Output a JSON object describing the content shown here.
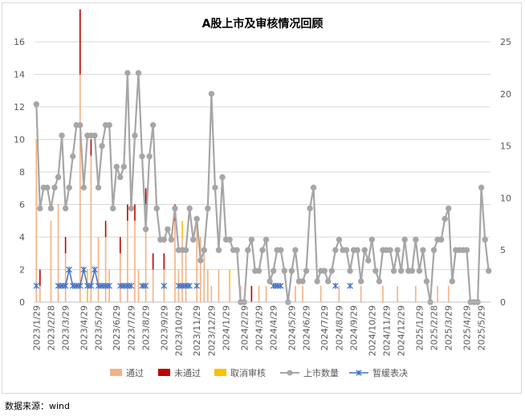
{
  "source_note": "数据来源：wind",
  "chart_data": {
    "type": "bar",
    "title": "A股上市及审核情况回顾",
    "weeks": 125,
    "x_tick_labels": [
      "2023/1/29",
      "2023/2/28",
      "2023/3/29",
      "2023/4/29",
      "2023/5/29",
      "2023/6/29",
      "2023/7/29",
      "2023/8/29",
      "2023/9/29",
      "2023/10/29",
      "2023/11/29",
      "2023/12/29",
      "2024/1/29",
      "2024/2/29",
      "2024/3/29",
      "2024/4/29",
      "2024/5/29",
      "2024/6/29",
      "2024/7/29",
      "2024/8/29",
      "2024/9/29",
      "2024/10/29",
      "2024/11/29",
      "2024/12/29",
      "2025/1/29",
      "2025/2/28",
      "2025/3/29",
      "2025/4/29",
      "2025/5/29"
    ],
    "x_tick_index": [
      0,
      4,
      8,
      13,
      17,
      22,
      26,
      30,
      35,
      39,
      44,
      48,
      52,
      57,
      61,
      65,
      70,
      74,
      79,
      83,
      87,
      92,
      96,
      100,
      105,
      109,
      113,
      118,
      122
    ],
    "y_left": {
      "min": 0,
      "max": 16,
      "ticks": [
        0,
        2,
        4,
        6,
        8,
        10,
        12,
        14,
        16
      ]
    },
    "y_right": {
      "min": 0,
      "max": 25,
      "ticks": [
        0,
        5,
        10,
        15,
        20,
        25
      ]
    },
    "legend": [
      "通过",
      "未通过",
      "取消审核",
      "上市数量",
      "暂缓表决"
    ],
    "colors": {
      "通过": "#f4b183",
      "未通过": "#c00000",
      "取消审核": "#ffc000",
      "上市数量": "#a6a6a6",
      "暂缓表决": "#4472c4"
    },
    "series": [
      {
        "name": "通过",
        "axis": "left",
        "type": "bar",
        "values": [
          10,
          1,
          0,
          0,
          5,
          0,
          6,
          0,
          3,
          0,
          0,
          0,
          14,
          0,
          0,
          9,
          0,
          4,
          0,
          4,
          2,
          0,
          0,
          3,
          0,
          5,
          0,
          5,
          2,
          0,
          6,
          0,
          2,
          0,
          0,
          2,
          0,
          0,
          5,
          2,
          4,
          3,
          0,
          0,
          5,
          4,
          3,
          2,
          1,
          0,
          2,
          0,
          0,
          1,
          0,
          0,
          1,
          0,
          0,
          0,
          0,
          1,
          0,
          1,
          0,
          0,
          0,
          0,
          0,
          0,
          0,
          1,
          0,
          1,
          0,
          0,
          0,
          0,
          1,
          0,
          0,
          0,
          0,
          1,
          0,
          0,
          0,
          0,
          0,
          1,
          0,
          0,
          0,
          0,
          0,
          1,
          0,
          0,
          0,
          1,
          0,
          0,
          0,
          0,
          1,
          0,
          0,
          0,
          0,
          0,
          1,
          0,
          0,
          1,
          0,
          0,
          0,
          0,
          0,
          0,
          0,
          0,
          0,
          0,
          0
        ]
      },
      {
        "name": "未通过",
        "axis": "left",
        "type": "bar",
        "values": [
          0,
          1,
          0,
          0,
          0,
          0,
          0,
          0,
          1,
          0,
          0,
          0,
          4,
          0,
          0,
          1,
          0,
          0,
          0,
          1,
          0,
          0,
          0,
          1,
          0,
          1,
          0,
          1,
          0,
          0,
          1,
          0,
          1,
          0,
          0,
          1,
          0,
          0,
          1,
          0,
          0,
          0,
          0,
          0,
          0,
          0,
          0,
          0,
          0,
          0,
          0,
          0,
          0,
          0,
          0,
          0,
          0,
          0,
          0,
          1,
          0,
          0,
          0,
          0,
          0,
          0,
          0,
          0,
          0,
          0,
          0,
          0,
          0,
          0,
          0,
          0,
          0,
          0,
          0,
          0,
          0,
          0,
          0,
          0,
          0,
          0,
          0,
          0,
          0,
          0,
          0,
          0,
          0,
          0,
          0,
          0,
          0,
          0,
          0,
          0,
          0,
          0,
          0,
          0,
          0,
          0,
          0,
          0,
          0,
          0,
          0,
          0,
          0,
          0,
          0,
          0,
          0,
          0,
          0,
          0,
          0,
          0,
          0,
          0,
          0
        ]
      },
      {
        "name": "取消审核",
        "axis": "left",
        "type": "bar",
        "values": [
          0,
          0,
          0,
          0,
          0,
          0,
          0,
          0,
          0,
          0,
          0,
          0,
          0,
          0,
          2,
          0,
          0,
          0,
          0,
          0,
          0,
          0,
          0,
          0,
          0,
          0,
          0,
          0,
          0,
          0,
          0,
          0,
          0,
          0,
          0,
          0,
          0,
          0,
          0,
          0,
          1,
          0,
          0,
          0,
          0,
          0,
          0,
          0,
          0,
          0,
          0,
          0,
          0,
          1,
          0,
          0,
          0,
          0,
          0,
          0,
          0,
          0,
          0,
          0,
          0,
          0,
          0,
          0,
          0,
          0,
          0,
          0,
          0,
          0,
          0,
          0,
          0,
          0,
          0,
          0,
          0,
          0,
          0,
          0,
          0,
          0,
          0,
          0,
          0,
          0,
          0,
          0,
          0,
          0,
          0,
          0,
          0,
          0,
          0,
          0,
          0,
          0,
          0,
          0,
          0,
          0,
          0,
          0,
          0,
          0,
          0,
          0,
          0,
          0,
          0,
          0,
          0,
          0,
          0,
          0,
          0,
          0,
          0,
          0,
          0
        ]
      },
      {
        "name": "上市数量",
        "axis": "right",
        "type": "line",
        "values": [
          19,
          9,
          11,
          11,
          9,
          11,
          12,
          16,
          9,
          11,
          14,
          17,
          17,
          11,
          16,
          16,
          16,
          11,
          15,
          17,
          17,
          9,
          13,
          12,
          13,
          22,
          9,
          16,
          22,
          14,
          7,
          14,
          17,
          9,
          6,
          6,
          7,
          6,
          9,
          5,
          5,
          5,
          9,
          6,
          8,
          4,
          5,
          9,
          20,
          11,
          5,
          12,
          6,
          6,
          5,
          5,
          0,
          0,
          5,
          6,
          3,
          3,
          5,
          6,
          2,
          3,
          5,
          5,
          3,
          0,
          3,
          5,
          2,
          2,
          3,
          9,
          11,
          2,
          3,
          3,
          2,
          3,
          5,
          6,
          5,
          5,
          3,
          5,
          5,
          2,
          5,
          4,
          6,
          3,
          2,
          5,
          5,
          5,
          3,
          5,
          3,
          6,
          3,
          3,
          6,
          3,
          5,
          2,
          0,
          5,
          6,
          6,
          8,
          9,
          2,
          5,
          5,
          5,
          5,
          0,
          0,
          0,
          11,
          6,
          3
        ]
      },
      {
        "name": "暂缓表决",
        "axis": "left",
        "type": "line",
        "values": [
          1,
          0,
          0,
          0,
          0,
          0,
          1,
          1,
          1,
          2,
          1,
          1,
          1,
          2,
          1,
          1,
          2,
          1,
          1,
          1,
          1,
          0,
          0,
          1,
          1,
          1,
          1,
          0,
          0,
          1,
          1,
          0,
          0,
          0,
          0,
          1,
          0,
          0,
          0,
          1,
          1,
          1,
          1,
          0,
          1,
          0,
          0,
          0,
          0,
          0,
          0,
          0,
          0,
          0,
          0,
          0,
          0,
          0,
          0,
          0,
          0,
          0,
          0,
          0,
          0,
          1,
          1,
          1,
          0,
          0,
          0,
          0,
          0,
          0,
          0,
          0,
          0,
          0,
          0,
          0,
          0,
          0,
          1,
          0,
          0,
          0,
          1,
          0,
          0,
          0,
          0,
          0,
          0,
          0,
          0,
          0,
          0,
          0,
          0,
          0,
          0,
          0,
          0,
          0,
          0,
          0,
          0,
          0,
          0,
          0,
          0,
          0,
          0,
          0,
          0,
          0,
          0,
          0,
          0,
          0,
          0,
          0,
          0,
          0,
          0
        ]
      }
    ]
  }
}
